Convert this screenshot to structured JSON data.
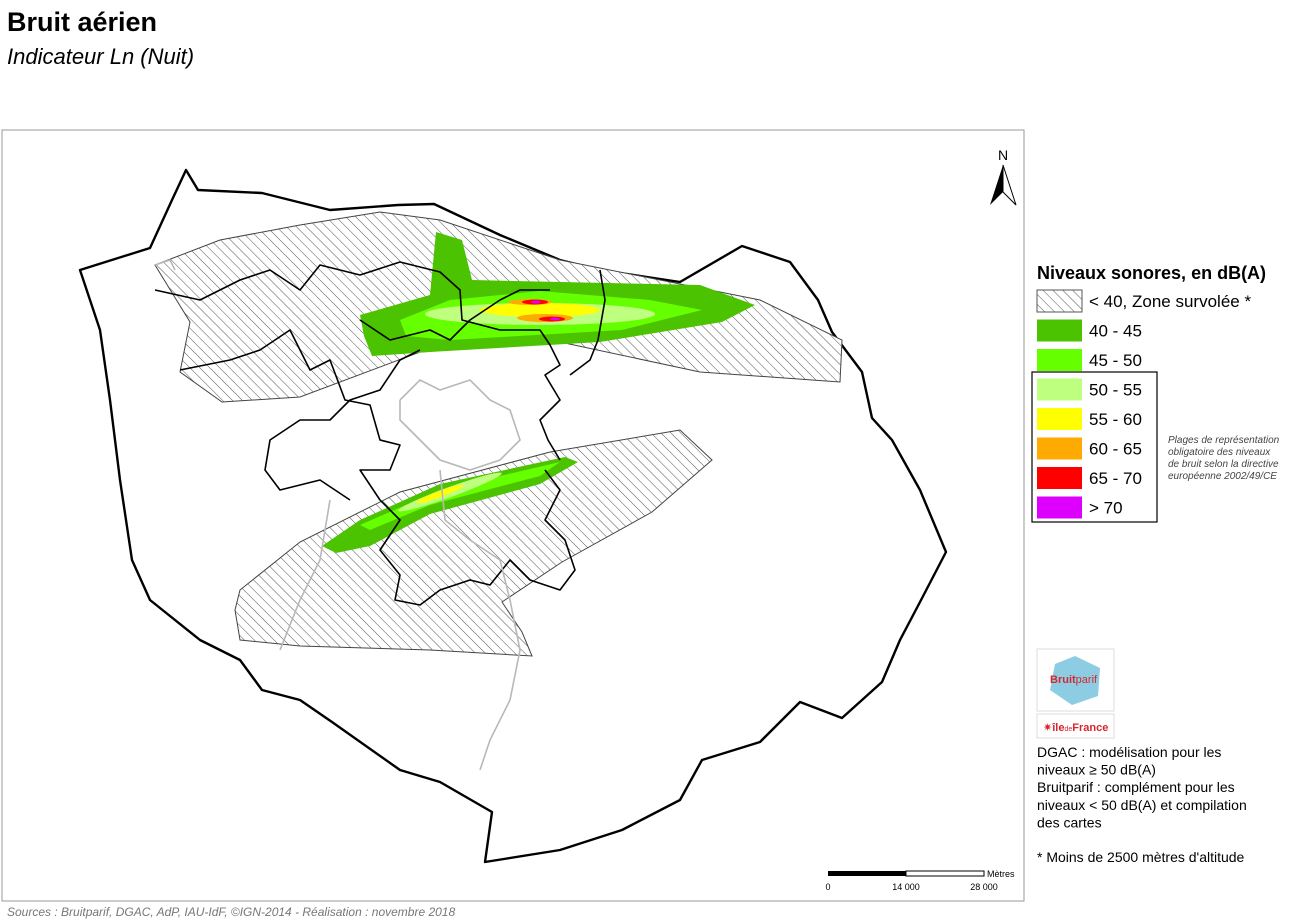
{
  "header": {
    "title": "Bruit aérien",
    "subtitle": "Indicateur Ln (Nuit)"
  },
  "map": {
    "north_label": "N",
    "scale": {
      "labels": [
        "0",
        "14 000",
        "28 000"
      ],
      "unit": "Mètres"
    }
  },
  "legend": {
    "title": "Niveaux sonores, en dB(A)",
    "items": [
      {
        "label": "< 40, Zone survolée *",
        "color": "#ffffff",
        "hatched": true
      },
      {
        "label": "40 - 45",
        "color": "#4cc300",
        "hatched": false
      },
      {
        "label": "45 - 50",
        "color": "#66ff00",
        "hatched": false
      },
      {
        "label": "50 - 55",
        "color": "#bfff7f",
        "hatched": false
      },
      {
        "label": "55 - 60",
        "color": "#ffff00",
        "hatched": false
      },
      {
        "label": "60 - 65",
        "color": "#ffaa00",
        "hatched": false
      },
      {
        "label": "65 - 70",
        "color": "#ff0000",
        "hatched": false
      },
      {
        "label": "> 70",
        "color": "#dd00ff",
        "hatched": false
      }
    ],
    "note": [
      "Plages de représentation",
      "obligatoire des niveaux",
      "de bruit selon la directive",
      "européenne 2002/49/CE"
    ]
  },
  "logos": {
    "bruitparif": [
      "Bruit",
      "parif"
    ],
    "iledefrance": [
      "île",
      "de",
      "France"
    ]
  },
  "notes": {
    "dgac": [
      "DGAC : modélisation pour les",
      "niveaux ≥ 50 dB(A)"
    ],
    "bruitparif": [
      "Bruitparif : complément pour les",
      "niveaux < 50 dB(A) et compilation",
      "des cartes"
    ],
    "altitude": "* Moins de 2500 mètres d'altitude"
  },
  "footer": {
    "sources": "Sources : Bruitparif, DGAC, AdP, IAU-IdF, ©IGN-2014 - Réalisation : novembre 2018"
  }
}
